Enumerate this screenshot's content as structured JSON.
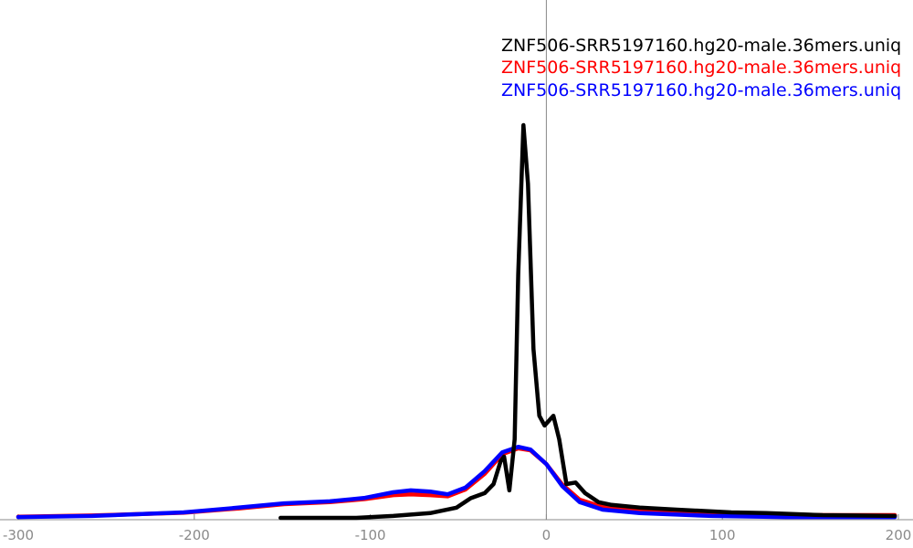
{
  "chart_data": {
    "type": "line",
    "title": "",
    "xlabel": "",
    "ylabel": "",
    "xlim": [
      -300,
      200
    ],
    "ylim": [
      0,
      1.1
    ],
    "grid": false,
    "legend_position": "top-right",
    "x_ticks": [
      -300,
      -200,
      -100,
      0,
      100,
      200
    ],
    "x_tick_labels": [
      "-300",
      "-200",
      "-100",
      "0",
      "100",
      "200"
    ],
    "vertical_reference_line_x": 0,
    "series": [
      {
        "name": "ZNF506-SRR5197160.hg20-male.36mers.uniq",
        "color": "#000000",
        "x": [
          -151,
          -123,
          -108,
          -87,
          -66,
          -51,
          -43,
          -35,
          -30,
          -26,
          -24,
          -21,
          -18,
          -16,
          -13,
          -10.4,
          -7.3,
          -4,
          -1,
          4,
          7.3,
          11.4,
          16.6,
          22,
          29.6,
          37,
          53,
          74,
          105,
          125,
          157,
          198
        ],
        "y": [
          0,
          0,
          0,
          0.005,
          0.012,
          0.026,
          0.05,
          0.063,
          0.086,
          0.144,
          0.156,
          0.07,
          0.2,
          0.62,
          1.0,
          0.85,
          0.43,
          0.26,
          0.235,
          0.26,
          0.2,
          0.086,
          0.09,
          0.063,
          0.04,
          0.033,
          0.026,
          0.021,
          0.014,
          0.012,
          0.007,
          0.005
        ]
      },
      {
        "name": "ZNF506-SRR5197160.hg20-male.36mers.uniq",
        "color": "#ff0000",
        "x": [
          -300,
          -258,
          -206,
          -175,
          -149,
          -123,
          -103,
          -87,
          -77,
          -66,
          -56,
          -46,
          -35,
          -25,
          -16,
          -9,
          0,
          9,
          19,
          32,
          53,
          94,
          136,
          198
        ],
        "y": [
          0.003,
          0.006,
          0.013,
          0.024,
          0.035,
          0.04,
          0.048,
          0.058,
          0.06,
          0.058,
          0.055,
          0.072,
          0.112,
          0.162,
          0.177,
          0.172,
          0.137,
          0.085,
          0.046,
          0.028,
          0.019,
          0.009,
          0.007,
          0.007
        ]
      },
      {
        "name": "ZNF506-SRR5197160.hg20-male.36mers.uniq",
        "color": "#0000ff",
        "x": [
          -300,
          -258,
          -206,
          -175,
          -149,
          -123,
          -103,
          -87,
          -77,
          -66,
          -56,
          -46,
          -35,
          -25,
          -16,
          -9,
          0,
          9,
          19,
          32,
          53,
          94,
          136,
          198
        ],
        "y": [
          0.002,
          0.005,
          0.014,
          0.026,
          0.037,
          0.042,
          0.051,
          0.065,
          0.07,
          0.067,
          0.06,
          0.077,
          0.119,
          0.167,
          0.181,
          0.174,
          0.137,
          0.081,
          0.04,
          0.021,
          0.012,
          0.005,
          0.002,
          0.002
        ]
      }
    ]
  }
}
